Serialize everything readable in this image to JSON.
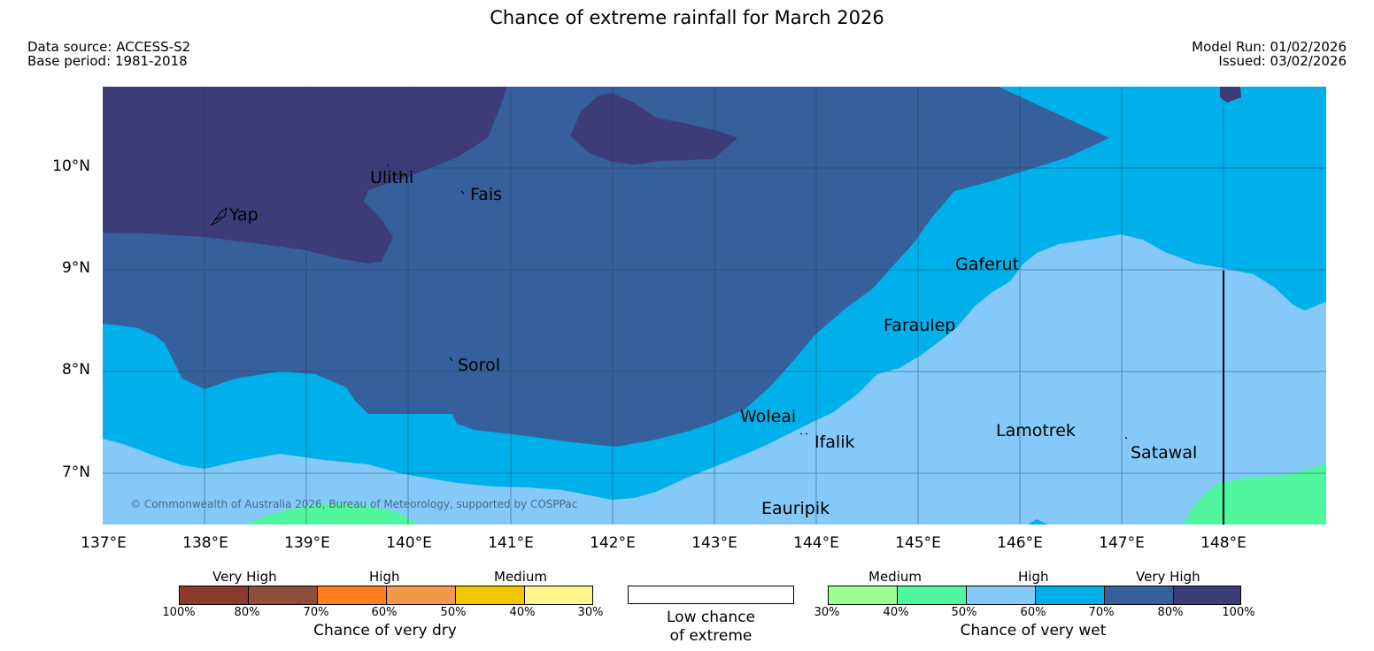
{
  "title": "Chance of extreme rainfall for March 2026",
  "meta": {
    "data_source": "Data source: ACCESS-S2",
    "base_period": "Base period: 1981-2018",
    "model_run": "Model Run: 01/02/2026",
    "issued": "Issued: 03/02/2026"
  },
  "map": {
    "lat_labels": [
      "10°N",
      "9°N",
      "8°N",
      "7°N"
    ],
    "lon_labels": [
      "137°E",
      "138°E",
      "139°E",
      "140°E",
      "141°E",
      "142°E",
      "143°E",
      "144°E",
      "145°E",
      "146°E",
      "147°E",
      "148°E"
    ],
    "places": [
      "Yap",
      "Ulithi",
      "Fais",
      "Gaferut",
      "Faraulep",
      "Sorol",
      "Woleai",
      "Ifalik",
      "Lamotrek",
      "Satawal",
      "Eauripik"
    ],
    "copyright": "© Commonwealth of Australia 2026, Bureau of Meteorology, supported by COSPPac",
    "colors": {
      "very_high_wet_80_100": "#3d3c78",
      "very_high_wet_70_80": "#35609c",
      "high_wet_60_70": "#00b0ea",
      "high_wet_50_60": "#84c9f8",
      "medium_wet_40_50": "#50f79e",
      "grid": "#1f3c5a"
    }
  },
  "legend": {
    "dry": {
      "categories": [
        "Very High",
        "High",
        "Medium"
      ],
      "colors": [
        "#8c3a2e",
        "#8f4d3a",
        "#ff7f1e",
        "#f0994a",
        "#f2c700",
        "#fff689"
      ],
      "ticks": [
        "100%",
        "80%",
        "70%",
        "60%",
        "50%",
        "40%",
        "30%"
      ],
      "title": "Chance of very dry"
    },
    "neutral": {
      "label_line1": "Low chance",
      "label_line2": "of extreme"
    },
    "wet": {
      "categories": [
        "Medium",
        "High",
        "Very High"
      ],
      "colors": [
        "#9bff91",
        "#50f79e",
        "#84c9f8",
        "#00b0ea",
        "#35609c",
        "#3d3c78"
      ],
      "ticks": [
        "30%",
        "40%",
        "50%",
        "60%",
        "70%",
        "80%",
        "100%"
      ],
      "title": "Chance of very wet"
    }
  }
}
